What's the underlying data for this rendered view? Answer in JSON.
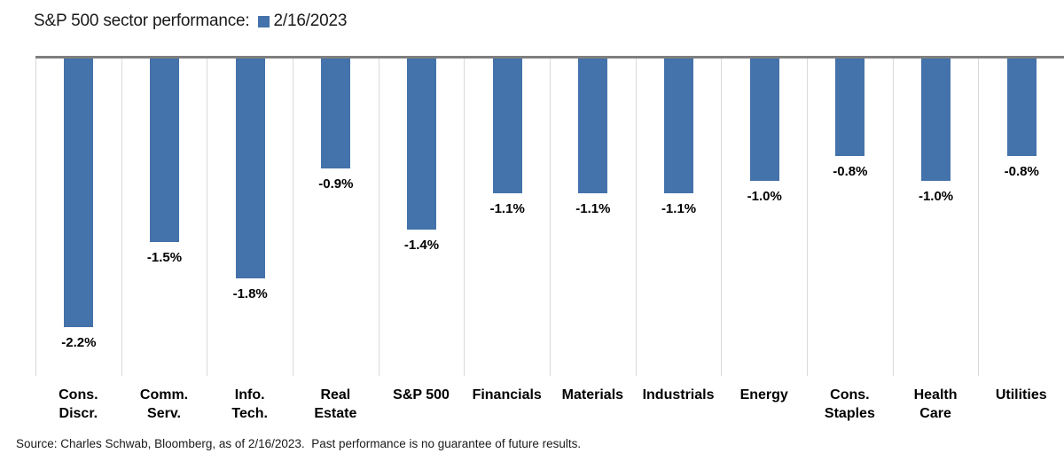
{
  "header": {
    "title": "S&P 500 sector performance:",
    "legend_label": "2/16/2023",
    "legend_swatch_color": "#4472AA"
  },
  "chart_data": {
    "type": "bar",
    "orientation": "vertical",
    "title": "S&P 500 sector performance:",
    "legend_entries": [
      "2/16/2023"
    ],
    "legend_position": "right-of-title",
    "categories": [
      "Cons. Discr.",
      "Comm. Serv.",
      "Info. Tech.",
      "Real Estate",
      "S&P 500",
      "Financials",
      "Materials",
      "Industrials",
      "Energy",
      "Cons. Staples",
      "Health Care",
      "Utilities"
    ],
    "category_label_lines": [
      [
        "Cons.",
        "Discr."
      ],
      [
        "Comm.",
        "Serv."
      ],
      [
        "Info.",
        "Tech."
      ],
      [
        "Real",
        "Estate"
      ],
      [
        "S&P 500"
      ],
      [
        "Financials"
      ],
      [
        "Materials"
      ],
      [
        "Industrials"
      ],
      [
        "Energy"
      ],
      [
        "Cons.",
        "Staples"
      ],
      [
        "Health",
        "Care"
      ],
      [
        "Utilities"
      ]
    ],
    "values": [
      -2.2,
      -1.5,
      -1.8,
      -0.9,
      -1.4,
      -1.1,
      -1.1,
      -1.1,
      -1.0,
      -0.8,
      -1.0,
      -0.8
    ],
    "value_labels": [
      "-2.2%",
      "-1.5%",
      "-1.8%",
      "-0.9%",
      "-1.4%",
      "-1.1%",
      "-1.1%",
      "-1.1%",
      "-1.0%",
      "-0.8%",
      "-1.0%",
      "-0.8%"
    ],
    "unit": "%",
    "ylim": [
      -2.6,
      0
    ],
    "grid": "vertical-category-separators",
    "value_labels_position": "below-bar",
    "bar_color": "#4472AA",
    "baseline_axis_color": "#7F7F7F",
    "gridline_color": "#D9D9D9"
  },
  "footer": {
    "source": "Source: Charles Schwab, Bloomberg, as of 2/16/2023.  Past performance is no guarantee of future results."
  }
}
